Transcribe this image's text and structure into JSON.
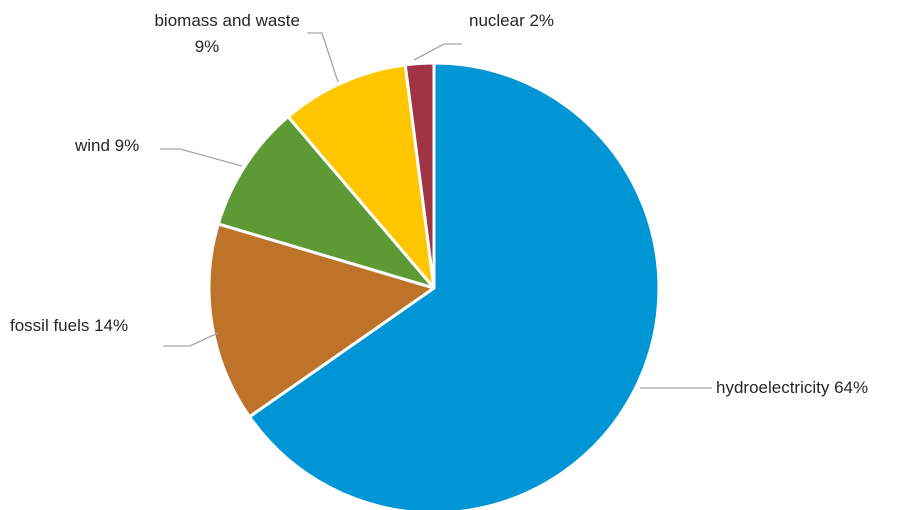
{
  "chart_data": {
    "type": "pie",
    "slices": [
      {
        "name": "hydroelectricity",
        "value": 64,
        "label": "hydroelectricity 64%",
        "color": "#0096D6"
      },
      {
        "name": "fossil fuels",
        "value": 14,
        "label": "fossil fuels 14%",
        "color": "#BD732A"
      },
      {
        "name": "wind",
        "value": 9,
        "label": "wind 9%",
        "color": "#5E9A33"
      },
      {
        "name": "biomass and waste",
        "value": 9,
        "label_lines": [
          "biomass and waste",
          "9%"
        ],
        "color": "#FFC600"
      },
      {
        "name": "nuclear",
        "value": 2,
        "label": "nuclear 2%",
        "color": "#A03444"
      }
    ]
  }
}
